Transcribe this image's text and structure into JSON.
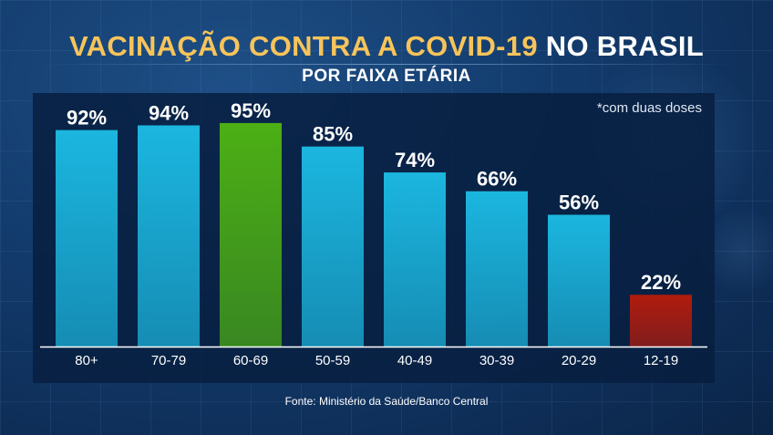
{
  "title": {
    "part1": "VACINAÇÃO CONTRA A COVID-19",
    "part2": "NO BRASIL"
  },
  "subtitle": "POR FAIXA ETÁRIA",
  "note": "*com duas doses",
  "source": "Fonte: Ministério da Saúde/Banco Central",
  "colors": {
    "default_bar": "#1bb6df",
    "highlight_max": "#4caf14",
    "highlight_min": "#b01c0e",
    "title_accent": "#f7c45a"
  },
  "chart_data": {
    "type": "bar",
    "categories": [
      "80+",
      "70-79",
      "60-69",
      "50-59",
      "40-49",
      "30-39",
      "20-29",
      "12-19"
    ],
    "values": [
      92,
      94,
      95,
      85,
      74,
      66,
      56,
      22
    ],
    "value_labels": [
      "92%",
      "94%",
      "95%",
      "85%",
      "74%",
      "66%",
      "56%",
      "22%"
    ],
    "bar_colors": [
      "#1bb6df",
      "#1bb6df",
      "#4caf14",
      "#1bb6df",
      "#1bb6df",
      "#1bb6df",
      "#1bb6df",
      "#b01c0e"
    ],
    "unit": "%",
    "ylim": [
      0,
      100
    ],
    "grid": false,
    "legend": false
  }
}
